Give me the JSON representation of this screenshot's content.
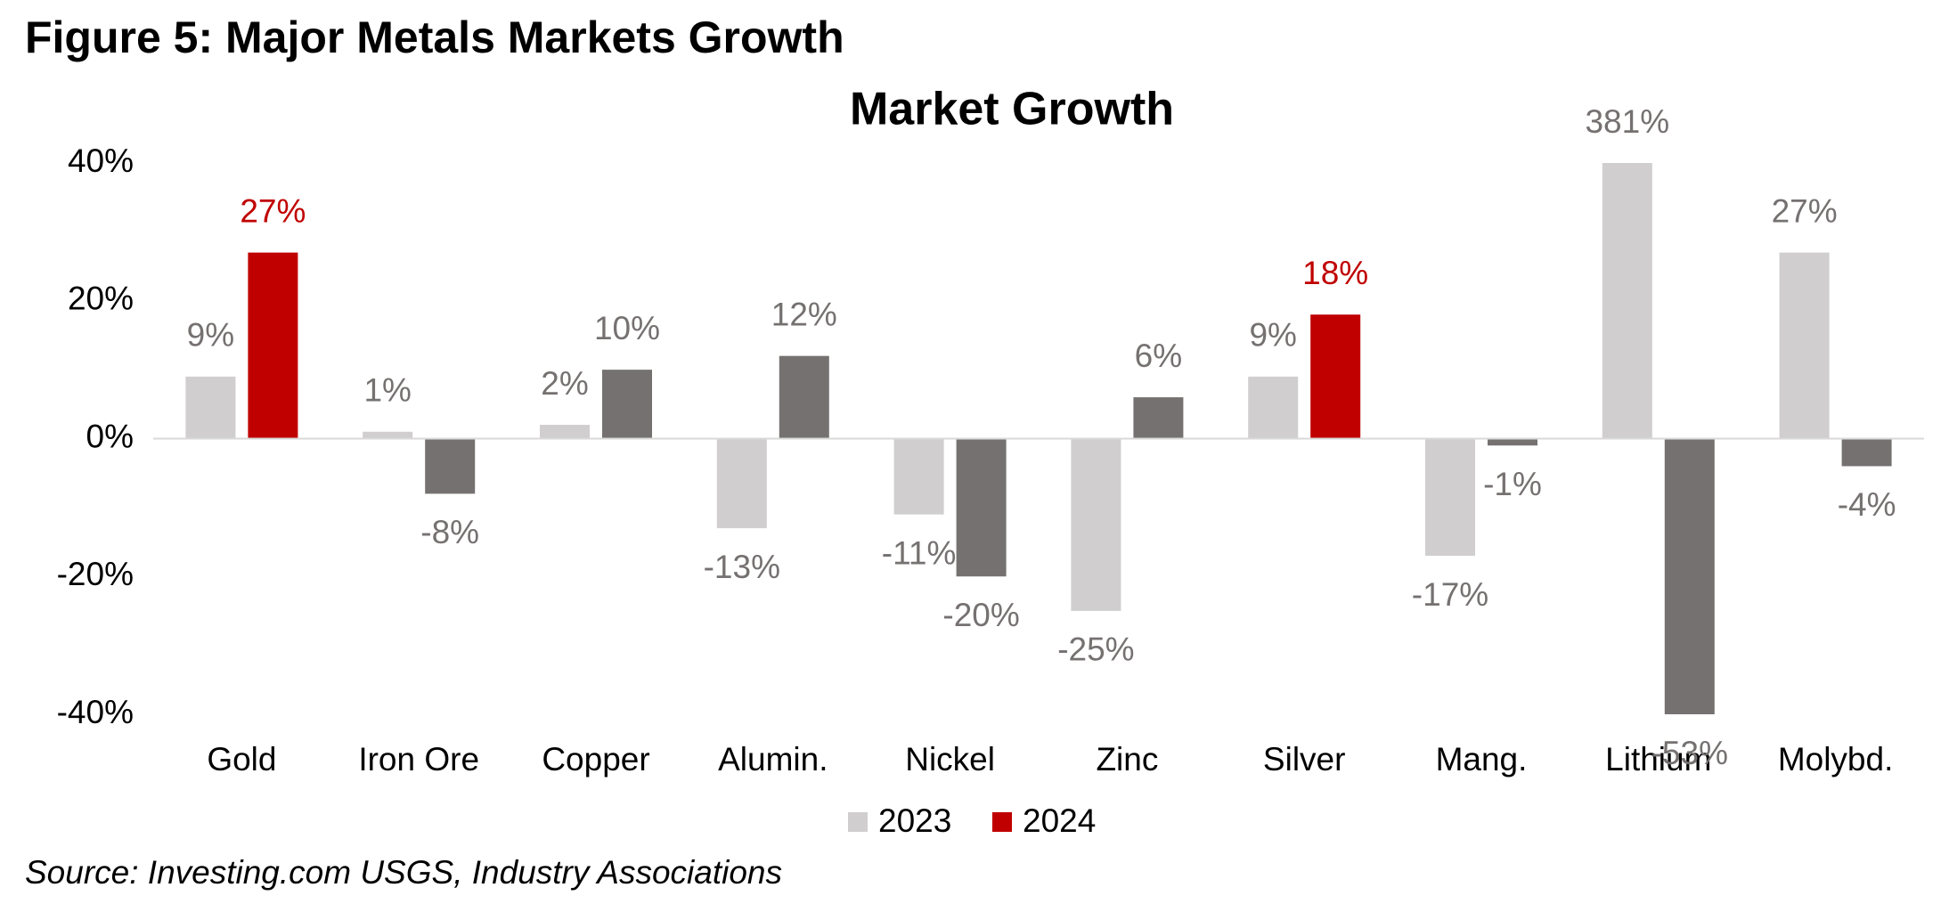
{
  "header": {
    "title": "Figure 5: Major Metals Markets Growth"
  },
  "chart_data": {
    "type": "bar",
    "title": "Market Growth",
    "categories": [
      "Gold",
      "Iron Ore",
      "Copper",
      "Alumin.",
      "Nickel",
      "Zinc",
      "Silver",
      "Mang.",
      "Lithium",
      "Molybd."
    ],
    "series": [
      {
        "name": "2023",
        "color": "#d0cece",
        "point_colors": [
          "#d0cece",
          "#d0cece",
          "#d0cece",
          "#d0cece",
          "#d0cece",
          "#d0cece",
          "#d0cece",
          "#d0cece",
          "#d0cece",
          "#d0cece"
        ],
        "label_colors": [
          "#767171",
          "#767171",
          "#767171",
          "#767171",
          "#767171",
          "#767171",
          "#767171",
          "#767171",
          "#767171",
          "#767171"
        ],
        "values": [
          9,
          1,
          2,
          -13,
          -11,
          -25,
          9,
          -17,
          381,
          27
        ],
        "value_labels": [
          "9%",
          "1%",
          "2%",
          "-13%",
          "-11%",
          "-25%",
          "9%",
          "-17%",
          "381%",
          "27%"
        ]
      },
      {
        "name": "2024",
        "color": "#c00000",
        "point_colors": [
          "#c00000",
          "#767171",
          "#767171",
          "#767171",
          "#767171",
          "#767171",
          "#c00000",
          "#767171",
          "#767171",
          "#767171"
        ],
        "label_colors": [
          "#c00000",
          "#767171",
          "#767171",
          "#767171",
          "#767171",
          "#767171",
          "#c00000",
          "#767171",
          "#767171",
          "#767171"
        ],
        "values": [
          27,
          -8,
          10,
          12,
          -20,
          6,
          18,
          -1,
          -53,
          -4
        ],
        "value_labels": [
          "27%",
          "-8%",
          "10%",
          "12%",
          "-20%",
          "6%",
          "18%",
          "-1%",
          "-53%",
          "-4%"
        ]
      }
    ],
    "ylim": [
      -40,
      40
    ],
    "yticks": [
      {
        "value": 40,
        "label": "40%"
      },
      {
        "value": 20,
        "label": "20%"
      },
      {
        "value": 0,
        "label": "0%"
      },
      {
        "value": -20,
        "label": "-20%"
      },
      {
        "value": -40,
        "label": "-40%"
      }
    ],
    "grid": false
  },
  "footer": {
    "source": "Source: Investing.com USGS, Industry Associations"
  }
}
